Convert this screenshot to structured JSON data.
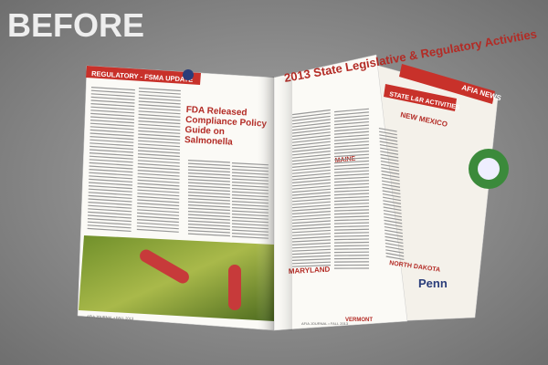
{
  "label": "BEFORE",
  "left_page": {
    "header": "REGULATORY - FSMA UPDATE",
    "headline": "FDA Released Compliance Policy Guide on Salmonella",
    "footer": "AFIA JOURNAL • FALL 2013"
  },
  "right_page": {
    "title": "2013 State Legislative & Regulatory Activities",
    "sections": [
      "MAINE",
      "MARYLAND",
      "VERMONT"
    ],
    "footer": "AFIA JOURNAL • FALL 2013"
  },
  "back_page": {
    "header": "AFIA NEWS",
    "subheader": "STATE L&R ACTIVITIES",
    "sections": [
      "NEW MEXICO",
      "NORTH DAKOTA"
    ],
    "logo": "Penn"
  }
}
